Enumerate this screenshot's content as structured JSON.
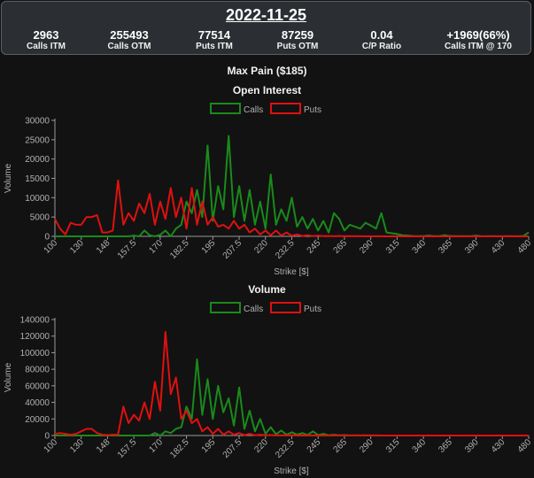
{
  "header": {
    "date": "2022-11-25",
    "stats": [
      {
        "value": "2963",
        "label": "Calls ITM"
      },
      {
        "value": "255493",
        "label": "Calls OTM"
      },
      {
        "value": "77514",
        "label": "Puts ITM"
      },
      {
        "value": "87259",
        "label": "Puts OTM"
      },
      {
        "value": "0.04",
        "label": "C/P Ratio"
      },
      {
        "value": "+1969(66%)",
        "label": "Calls ITM @ 170"
      }
    ]
  },
  "max_pain": "Max Pain ($185)",
  "colors": {
    "calls": "#1a8a1a",
    "puts": "#e01010",
    "axis": "#9a9a9a",
    "text": "#b0b0b0"
  },
  "chart_data": [
    {
      "type": "line",
      "title": "Open Interest",
      "xlabel": "Strike [$]",
      "ylabel": "Volume",
      "ylim": [
        0,
        30000
      ],
      "yticks": [
        "0",
        "5000",
        "10000",
        "15000",
        "20000",
        "25000",
        "30000"
      ],
      "xticklabels": [
        "100",
        "130",
        "148",
        "157.5",
        "170",
        "182.5",
        "195",
        "207.5",
        "220",
        "232.5",
        "245",
        "265",
        "290",
        "315",
        "340",
        "365",
        "390",
        "430",
        "480"
      ],
      "legend": "top",
      "series": [
        {
          "name": "Calls",
          "values": [
            0,
            0,
            0,
            0,
            0,
            0,
            0,
            0,
            0,
            0,
            0,
            0,
            0,
            0,
            0,
            200,
            0,
            1500,
            300,
            0,
            400,
            1500,
            0,
            2000,
            3000,
            9000,
            6000,
            12000,
            5000,
            23500,
            4000,
            13000,
            7000,
            26000,
            5000,
            13000,
            4000,
            12000,
            3000,
            9000,
            2000,
            16000,
            3000,
            7000,
            4000,
            10000,
            2500,
            5000,
            2000,
            4500,
            1500,
            4000,
            1000,
            6000,
            4500,
            1500,
            3000,
            2500,
            2000,
            3500,
            2800,
            2000,
            6000,
            1000,
            800,
            600,
            300,
            200,
            100,
            80,
            60,
            200,
            50,
            40,
            300,
            100,
            60,
            50,
            40,
            30,
            200,
            20,
            30,
            40,
            20,
            20,
            50,
            30,
            20,
            100,
            1000
          ]
        },
        {
          "name": "Puts",
          "values": [
            4500,
            2000,
            500,
            3500,
            3000,
            3000,
            5000,
            5000,
            5500,
            1000,
            1000,
            1500,
            14500,
            3000,
            6000,
            4000,
            8500,
            6000,
            11000,
            3000,
            9000,
            4500,
            12500,
            5000,
            10000,
            2000,
            12500,
            3000,
            9000,
            3000,
            5000,
            2500,
            3000,
            2000,
            4000,
            2000,
            3000,
            1000,
            2000,
            500,
            1500,
            300,
            1500,
            200,
            1000,
            150,
            500,
            100,
            300,
            80,
            200,
            50,
            100,
            30,
            100,
            20,
            50,
            20,
            30,
            10,
            20,
            10,
            20,
            10,
            10,
            5,
            10,
            5,
            5,
            5,
            5,
            5,
            5,
            5,
            5,
            5,
            5,
            5,
            5,
            5,
            5,
            5,
            5,
            5,
            5,
            5,
            5,
            5,
            5,
            5,
            5
          ]
        }
      ]
    },
    {
      "type": "line",
      "title": "Volume",
      "xlabel": "Strike [$]",
      "ylabel": "Volume",
      "ylim": [
        0,
        140000
      ],
      "yticks": [
        "0",
        "20000",
        "40000",
        "60000",
        "80000",
        "100000",
        "120000",
        "140000"
      ],
      "xticklabels": [
        "100",
        "130",
        "148",
        "157.5",
        "170",
        "182.5",
        "195",
        "207.5",
        "220",
        "232.5",
        "245",
        "265",
        "290",
        "315",
        "340",
        "365",
        "390",
        "430",
        "480"
      ],
      "legend": "top",
      "series": [
        {
          "name": "Calls",
          "values": [
            0,
            0,
            0,
            0,
            0,
            0,
            0,
            0,
            0,
            0,
            0,
            0,
            0,
            0,
            0,
            0,
            0,
            0,
            0,
            3000,
            0,
            5000,
            3000,
            8000,
            10000,
            35000,
            20000,
            92000,
            25000,
            68000,
            20000,
            60000,
            28000,
            45000,
            12000,
            58000,
            8000,
            30000,
            5000,
            20000,
            2000,
            10000,
            1500,
            6000,
            1000,
            4000,
            1000,
            3000,
            500,
            5000,
            500,
            2000,
            300,
            1000,
            200,
            500,
            100,
            300,
            100,
            200,
            100,
            100,
            50,
            50,
            50,
            50,
            50,
            50,
            50,
            50,
            50,
            50,
            50,
            50,
            50,
            50,
            50,
            50,
            50,
            50,
            50,
            50,
            50,
            50,
            50,
            50,
            50,
            50,
            50,
            50,
            50
          ]
        },
        {
          "name": "Puts",
          "values": [
            2000,
            3000,
            2000,
            1000,
            2000,
            5000,
            8000,
            8000,
            3000,
            1000,
            500,
            1000,
            1000,
            35000,
            15000,
            25000,
            18000,
            40000,
            20000,
            65000,
            30000,
            125000,
            50000,
            70000,
            20000,
            30000,
            15000,
            20000,
            5000,
            10000,
            2000,
            8000,
            1000,
            5000,
            1000,
            3000,
            500,
            2000,
            300,
            1000,
            200,
            500,
            100,
            300,
            100,
            200,
            50,
            100,
            50,
            50,
            50,
            50,
            50,
            50,
            50,
            50,
            50,
            50,
            50,
            50,
            50,
            50,
            50,
            50,
            50,
            50,
            50,
            50,
            50,
            50,
            50,
            50,
            50,
            50,
            50,
            50,
            50,
            50,
            50,
            50,
            50,
            50,
            50,
            50,
            50,
            50,
            50,
            50,
            50,
            50,
            50
          ]
        }
      ]
    }
  ]
}
